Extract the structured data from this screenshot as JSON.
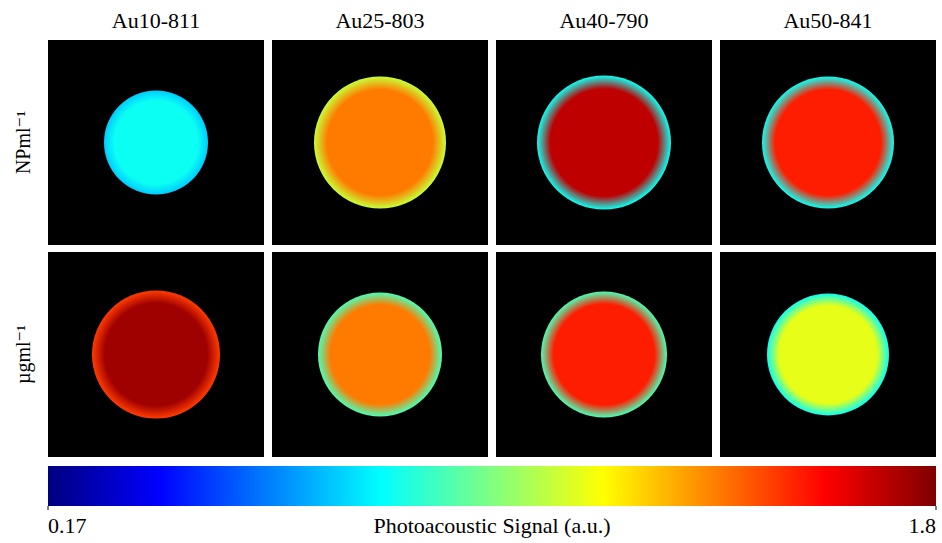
{
  "chart_data": {
    "type": "heatmap",
    "columns": [
      "Au10-811",
      "Au25-803",
      "Au40-790",
      "Au50-841"
    ],
    "rows": [
      "NPml⁻¹",
      "µgml⁻¹"
    ],
    "values": [
      [
        0.8,
        1.4,
        1.7,
        1.55
      ],
      [
        1.75,
        1.4,
        1.55,
        1.15
      ]
    ],
    "edge_values": [
      [
        0.7,
        1.1,
        0.8,
        0.8
      ],
      [
        1.5,
        0.9,
        0.9,
        0.8
      ]
    ],
    "colorbar": {
      "label": "Photoacoustic Signal (a.u.)",
      "range": [
        0.17,
        1.8
      ],
      "ticks": [
        0.17,
        1.8
      ]
    }
  }
}
